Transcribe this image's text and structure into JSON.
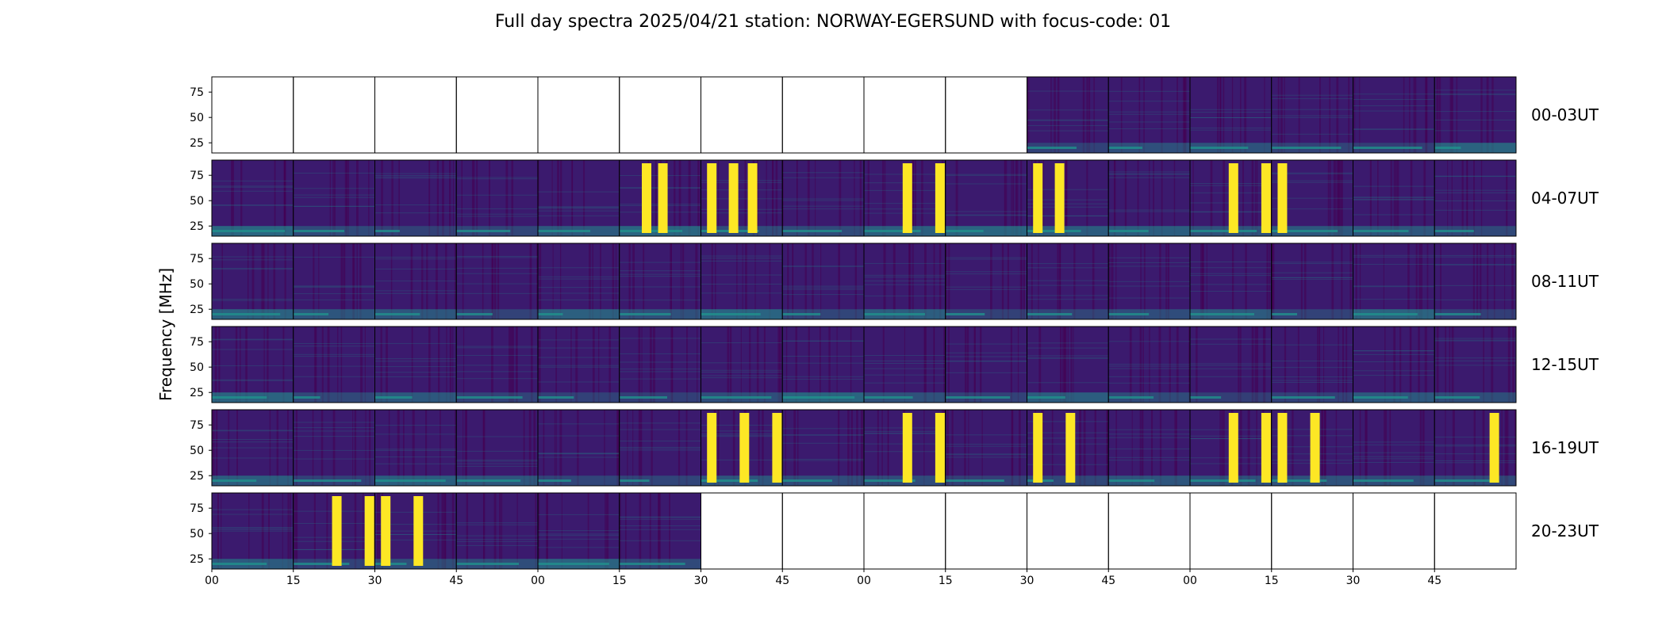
{
  "chart_data": {
    "type": "heatmap",
    "title": "Full day spectra 2025/04/21 station: NORWAY-EGERSUND with focus-code: 01",
    "ylabel": "Frequency [MHz]",
    "xlabel": "",
    "y_unit": "MHz",
    "ylim": [
      15,
      90
    ],
    "y_ticks": [
      "75",
      "50",
      "25"
    ],
    "y_tick_values": [
      75,
      50,
      25
    ],
    "x_ticks": [
      "00",
      "15",
      "30",
      "45",
      "00",
      "15",
      "30",
      "45",
      "00",
      "15",
      "30",
      "45",
      "00",
      "15",
      "30",
      "45"
    ],
    "colormap": "viridis",
    "colors": {
      "low": "#440154",
      "background": "#3b1a6e",
      "mid": "#21918c",
      "high": "#fde725"
    },
    "panels_per_row": 16,
    "panel_minutes": 15,
    "rows": [
      {
        "label": "00-03UT",
        "data_panels": [
          11,
          12,
          13,
          14,
          15,
          16
        ],
        "bursts": []
      },
      {
        "label": "04-07UT",
        "data_panels": [
          1,
          2,
          3,
          4,
          5,
          6,
          7,
          8,
          9,
          10,
          11,
          12,
          13,
          14,
          15,
          16
        ],
        "bursts": [
          [
            6,
            5
          ],
          [
            6,
            8
          ],
          [
            7,
            2
          ],
          [
            7,
            6
          ],
          [
            7,
            9.5
          ],
          [
            9,
            8
          ],
          [
            9,
            14
          ],
          [
            11,
            2
          ],
          [
            11,
            6
          ],
          [
            13,
            8
          ],
          [
            13,
            14
          ],
          [
            14,
            2
          ]
        ]
      },
      {
        "label": "08-11UT",
        "data_panels": [
          1,
          2,
          3,
          4,
          5,
          6,
          7,
          8,
          9,
          10,
          11,
          12,
          13,
          14,
          15,
          16
        ],
        "bursts": []
      },
      {
        "label": "12-15UT",
        "data_panels": [
          1,
          2,
          3,
          4,
          5,
          6,
          7,
          8,
          9,
          10,
          11,
          12,
          13,
          14,
          15,
          16
        ],
        "bursts": []
      },
      {
        "label": "16-19UT",
        "data_panels": [
          1,
          2,
          3,
          4,
          5,
          6,
          7,
          8,
          9,
          10,
          11,
          12,
          13,
          14,
          15,
          16
        ],
        "bursts": [
          [
            7,
            2
          ],
          [
            7,
            8
          ],
          [
            7,
            14
          ],
          [
            9,
            8
          ],
          [
            9,
            14
          ],
          [
            11,
            2
          ],
          [
            11,
            8
          ],
          [
            13,
            8
          ],
          [
            13,
            14
          ],
          [
            14,
            2
          ],
          [
            14,
            8
          ],
          [
            16,
            11
          ]
        ]
      },
      {
        "label": "20-23UT",
        "data_panels": [
          1,
          2,
          3,
          4,
          5,
          6
        ],
        "bursts": [
          [
            2,
            8
          ],
          [
            2,
            14
          ],
          [
            3,
            2
          ],
          [
            3,
            8
          ]
        ]
      }
    ]
  }
}
